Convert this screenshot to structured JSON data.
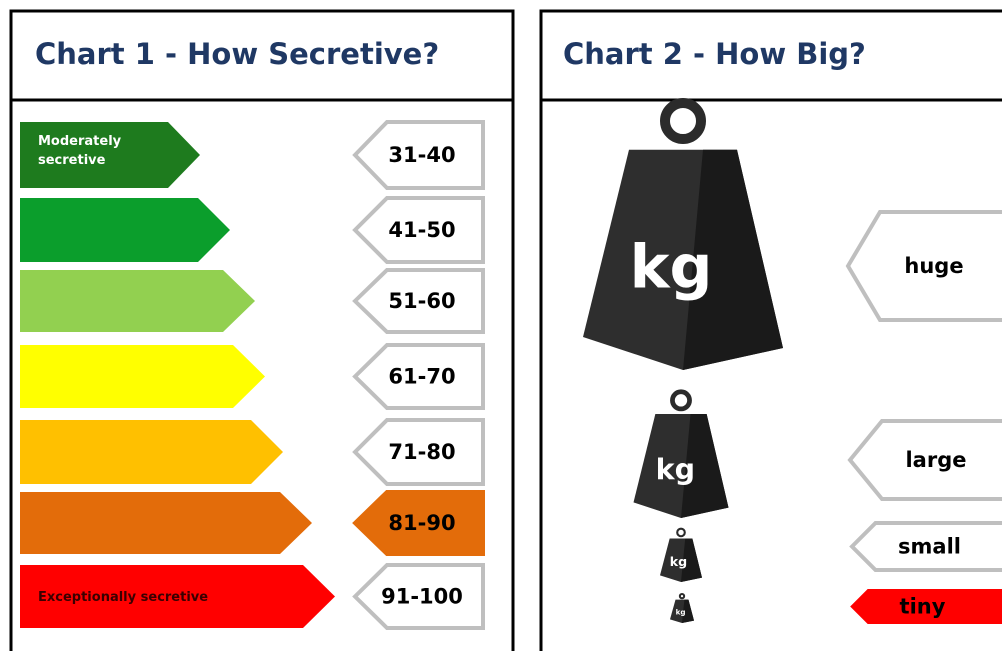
{
  "charts": [
    {
      "title": "Chart 1 - How Secretive?",
      "rows": [
        {
          "label": "Moderately secretive",
          "range": "31-40"
        },
        {
          "range": "41-50"
        },
        {
          "range": "51-60"
        },
        {
          "range": "61-70"
        },
        {
          "range": "71-80"
        },
        {
          "range": "81-90"
        },
        {
          "label": "Exceptionally secretive",
          "range": "91-100"
        }
      ]
    },
    {
      "title": "Chart 2 - How Big?",
      "sizes": [
        {
          "icon_label": "kg",
          "label": "huge"
        },
        {
          "icon_label": "kg",
          "label": "large"
        },
        {
          "icon_label": "kg",
          "label": "small"
        },
        {
          "icon_label": "kg",
          "label": "tiny"
        }
      ]
    }
  ]
}
